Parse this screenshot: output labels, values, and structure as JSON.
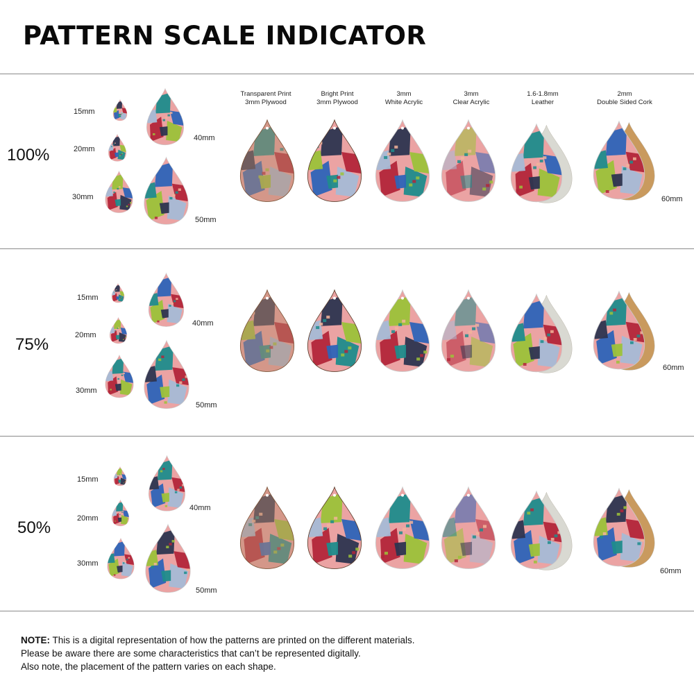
{
  "title": "PATTERN SCALE INDICATOR",
  "materials": [
    {
      "line1": "Transparent Print",
      "line2": "3mm Plywood"
    },
    {
      "line1": "Bright Print",
      "line2": "3mm Plywood"
    },
    {
      "line1": "3mm",
      "line2": "White Acrylic"
    },
    {
      "line1": "3mm",
      "line2": "Clear Acrylic"
    },
    {
      "line1": "1.6-1.8mm",
      "line2": "Leather"
    },
    {
      "line1": "2mm",
      "line2": "Double Sided Cork"
    }
  ],
  "sections": [
    {
      "scale": "100%",
      "sizes": {
        "s15": "15mm",
        "s20": "20mm",
        "s30": "30mm",
        "s40": "40mm",
        "s50": "50mm",
        "s60": "60mm"
      }
    },
    {
      "scale": "75%",
      "sizes": {
        "s15": "15mm",
        "s20": "20mm",
        "s30": "30mm",
        "s40": "40mm",
        "s50": "50mm",
        "s60": "60mm"
      }
    },
    {
      "scale": "50%",
      "sizes": {
        "s15": "15mm",
        "s20": "20mm",
        "s30": "30mm",
        "s40": "40mm",
        "s50": "50mm",
        "s60": "60mm"
      }
    }
  ],
  "note": {
    "label": "NOTE:",
    "line1": "This is a digital representation of how the patterns are printed on the different materials.",
    "line2": "Please be aware there are some characteristics that can’t be represented digitally.",
    "line3": "Also note, the placement of the pattern varies on each shape."
  },
  "colors": {
    "pink": "#eba3a3",
    "blue": "#2e64b8",
    "teal": "#1f8c8c",
    "grayblue": "#a7bbd6",
    "red": "#b3263a",
    "lime": "#9cc23a",
    "navy": "#2d3550",
    "peach": "#f2b49a",
    "wood": "#b98a6a",
    "cork": "#c99a5e",
    "suede": "#d9d9d2"
  }
}
